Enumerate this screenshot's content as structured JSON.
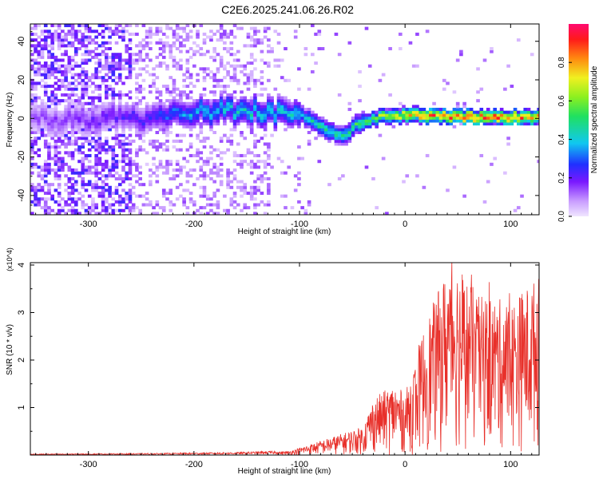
{
  "title": "C2E6.2025.241.06.26.R02",
  "chart_data": [
    {
      "type": "heatmap",
      "name": "spectrogram",
      "xlabel": "Height of straight line (km)",
      "ylabel": "Frequency (Hz)",
      "xlim": [
        -355,
        127
      ],
      "ylim": [
        -50,
        49
      ],
      "xticks": [
        -300,
        -200,
        -100,
        0,
        100
      ],
      "yticks": [
        -40,
        -20,
        0,
        20,
        40
      ],
      "colorbar": {
        "label": "Normalized spectral amplitude",
        "range": [
          0,
          1
        ],
        "ticks": [
          "0.0",
          "0.2",
          "0.4",
          "0.6",
          "0.8"
        ]
      },
      "ridge": {
        "description_points": [
          {
            "x": -355,
            "freq": -1,
            "amp": 0.15
          },
          {
            "x": -250,
            "freq": 0,
            "amp": 0.25
          },
          {
            "x": -200,
            "freq": 3,
            "amp": 0.4
          },
          {
            "x": -150,
            "freq": 4,
            "amp": 0.45
          },
          {
            "x": -100,
            "freq": 1,
            "amp": 0.45
          },
          {
            "x": -80,
            "freq": -5,
            "amp": 0.5
          },
          {
            "x": -60,
            "freq": -10,
            "amp": 0.5
          },
          {
            "x": -45,
            "freq": -3,
            "amp": 0.55
          },
          {
            "x": -20,
            "freq": 1,
            "amp": 0.7
          },
          {
            "x": 0,
            "freq": 1,
            "amp": 0.85
          },
          {
            "x": 60,
            "freq": 0,
            "amp": 0.95
          },
          {
            "x": 127,
            "freq": 0,
            "amp": 0.9
          }
        ]
      }
    },
    {
      "type": "line",
      "name": "snr",
      "xlabel": "Height of straight line (km)",
      "ylabel": "SNR (10 * v/v)",
      "y_multiplier": "(x10^4)",
      "xlim": [
        -355,
        127
      ],
      "ylim": [
        0,
        4.05
      ],
      "xticks": [
        -300,
        -200,
        -100,
        0,
        100
      ],
      "yticks": [
        1,
        2,
        3,
        4
      ],
      "color": "#e8302a",
      "envelope_points": [
        {
          "x": -355,
          "y": 0.02
        },
        {
          "x": -250,
          "y": 0.03
        },
        {
          "x": -160,
          "y": 0.05
        },
        {
          "x": -110,
          "y": 0.08
        },
        {
          "x": -80,
          "y": 0.3
        },
        {
          "x": -60,
          "y": 0.45
        },
        {
          "x": -40,
          "y": 0.6
        },
        {
          "x": -30,
          "y": 1.2
        },
        {
          "x": -10,
          "y": 1.5
        },
        {
          "x": 0,
          "y": 1.3
        },
        {
          "x": 20,
          "y": 2.7
        },
        {
          "x": 45,
          "y": 4.0
        },
        {
          "x": 70,
          "y": 3.2
        },
        {
          "x": 100,
          "y": 3.1
        },
        {
          "x": 127,
          "y": 3.6
        }
      ]
    }
  ]
}
